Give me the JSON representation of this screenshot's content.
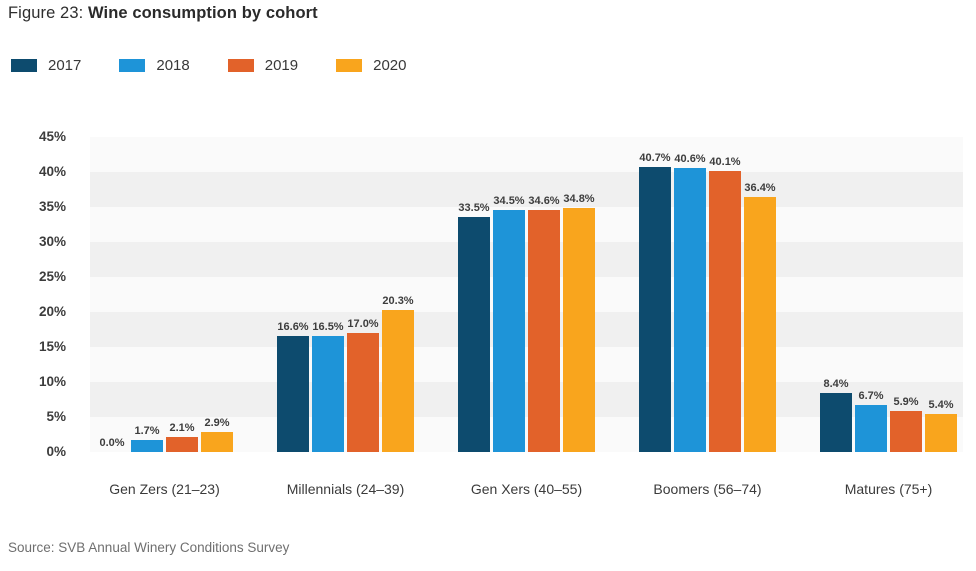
{
  "header": {
    "figure_label": "Figure 23:",
    "title": "Wine consumption by cohort"
  },
  "legend": [
    {
      "label": "2017",
      "color": "#0d4b6e"
    },
    {
      "label": "2018",
      "color": "#1e94d8"
    },
    {
      "label": "2019",
      "color": "#e2622a"
    },
    {
      "label": "2020",
      "color": "#f9a51d"
    }
  ],
  "chart_data": {
    "type": "bar",
    "title": "Wine consumption by cohort",
    "categories": [
      "Gen Zers (21–23)",
      "Millennials (24–39)",
      "Gen Xers (40–55)",
      "Boomers (56–74)",
      "Matures (75+)"
    ],
    "series": [
      {
        "name": "2017",
        "color": "#0d4b6e",
        "values": [
          0.0,
          16.6,
          33.5,
          40.7,
          8.4
        ]
      },
      {
        "name": "2018",
        "color": "#1e94d8",
        "values": [
          1.7,
          16.5,
          34.5,
          40.6,
          6.7
        ]
      },
      {
        "name": "2019",
        "color": "#e2622a",
        "values": [
          2.1,
          17.0,
          34.6,
          40.1,
          5.9
        ]
      },
      {
        "name": "2020",
        "color": "#f9a51d",
        "values": [
          2.9,
          20.3,
          34.8,
          36.4,
          5.4
        ]
      }
    ],
    "value_label_format": "percent-1-decimal",
    "xlabel": "",
    "ylabel": "",
    "y_axis": {
      "min": 0,
      "max": 45,
      "step": 5,
      "tick_labels": [
        "45%",
        "40%",
        "35%",
        "30%",
        "25%",
        "20%",
        "15%",
        "10%",
        "5%",
        "0%"
      ]
    },
    "grid": "horizontal-stripe-bands",
    "stripe_colors": [
      "#fafafa",
      "#f0f0f0"
    ],
    "legend_position": "top-left"
  },
  "source": "Source: SVB Annual Winery Conditions Survey"
}
